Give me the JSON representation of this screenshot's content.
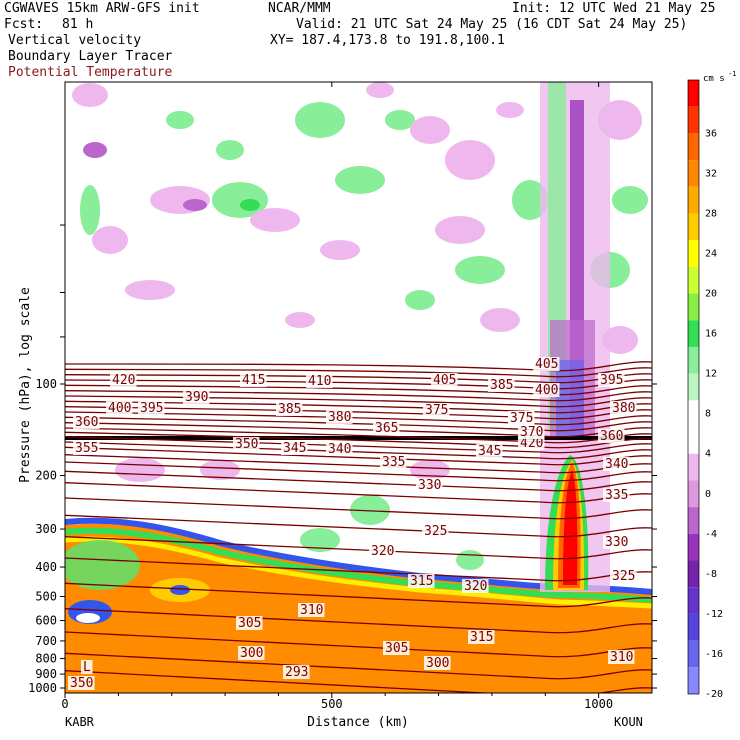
{
  "header": {
    "model": "CGWAVES 15km ARW-GFS init",
    "fcst_label": "Fcst:",
    "fcst_hours": "81 h",
    "source": "NCAR/MMM",
    "init": "Init: 12 UTC Wed 21 May 25",
    "valid": "Valid: 21 UTC Sat 24 May 25 (16 CDT Sat 24 May 25)",
    "xy": "XY= 187.4,173.8 to 191.8,100.1",
    "field1": "Vertical velocity",
    "field2": "Boundary Layer Tracer",
    "field3": "Potential Temperature"
  },
  "colors": {
    "theta": "#7a0000",
    "field3_label": "#8b1a1a",
    "surface_orange": "#ff8c00"
  },
  "chart_data": {
    "type": "heatmap",
    "xlabel": "Distance (km)",
    "ylabel": "Pressure (hPa), log scale",
    "x_ticks": [
      0,
      500,
      1000
    ],
    "x_range": [
      0,
      1100
    ],
    "y_ticks": [
      100,
      200,
      300,
      400,
      500,
      600,
      700,
      800,
      900,
      1000
    ],
    "y_scale": "log",
    "left_station": "KABR",
    "right_station": "KOUN",
    "colorbar": {
      "unit": "cm s",
      "unit_exp": "-1",
      "labels": [
        "36",
        "32",
        "28",
        "24",
        "20",
        "16",
        "12",
        "8",
        "4",
        "0",
        "-4",
        "-8",
        "-12",
        "-16",
        "-20"
      ],
      "colors": [
        "#ff0000",
        "#ff3300",
        "#ff6600",
        "#ff8800",
        "#ffaa00",
        "#ffcc00",
        "#ffff00",
        "#ccff33",
        "#88ee44",
        "#33dd55",
        "#88ee99",
        "#bbf5c0",
        "#ffffff",
        "#ffffff",
        "#eeb8ee",
        "#dd99dd",
        "#bb66cc",
        "#9933bb",
        "#7722aa",
        "#6633cc",
        "#5544dd",
        "#6666ee",
        "#8888ff"
      ]
    },
    "theta_labels": [
      "420",
      "415",
      "410",
      "405",
      "400",
      "395",
      "390",
      "385",
      "380",
      "375",
      "370",
      "365",
      "360",
      "355",
      "350",
      "345",
      "340",
      "335",
      "330",
      "325",
      "320",
      "315",
      "310",
      "305",
      "300",
      "293",
      "350",
      "420",
      "405",
      "395",
      "400",
      "385",
      "380",
      "375",
      "370",
      "360",
      "345",
      "340",
      "335",
      "330",
      "325",
      "320",
      "315",
      "305",
      "300",
      "310",
      "L"
    ]
  }
}
